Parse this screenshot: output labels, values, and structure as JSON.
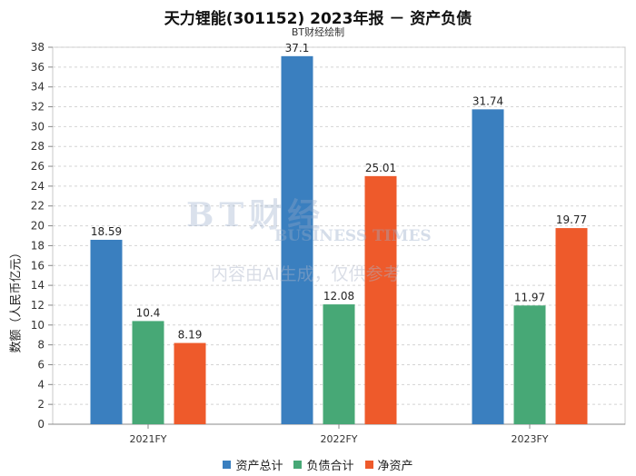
{
  "header": {
    "title": "天力锂能(301152) 2023年报 － 资产负债",
    "subtitle": "BT财经绘制"
  },
  "watermark": {
    "brand": "BT财经",
    "brand_en": "BUSINESS TIMES",
    "notice": "内容由AI生成，仅供参考"
  },
  "chart_data": {
    "type": "bar",
    "title": "天力锂能(301152) 2023年报 － 资产负债",
    "subtitle": "BT财经绘制",
    "xlabel": "",
    "ylabel": "数额（人民币亿元）",
    "ylim": [
      0,
      38
    ],
    "yticks": [
      0,
      2,
      4,
      6,
      8,
      10,
      12,
      14,
      16,
      18,
      20,
      22,
      24,
      26,
      28,
      30,
      32,
      34,
      36,
      38
    ],
    "grid": true,
    "legend_position": "bottom",
    "categories": [
      "2021FY",
      "2022FY",
      "2023FY"
    ],
    "series": [
      {
        "name": "资产总计",
        "color": "#3a7fbf",
        "values": [
          18.59,
          37.1,
          31.74
        ],
        "labels": [
          "18.59",
          "37.1",
          "31.74"
        ]
      },
      {
        "name": "负债合计",
        "color": "#47a876",
        "values": [
          10.4,
          12.08,
          11.97
        ],
        "labels": [
          "10.4",
          "12.08",
          "11.97"
        ]
      },
      {
        "name": "净资产",
        "color": "#ee5a2b",
        "values": [
          8.19,
          25.01,
          19.77
        ],
        "labels": [
          "8.19",
          "25.01",
          "19.77"
        ]
      }
    ]
  }
}
